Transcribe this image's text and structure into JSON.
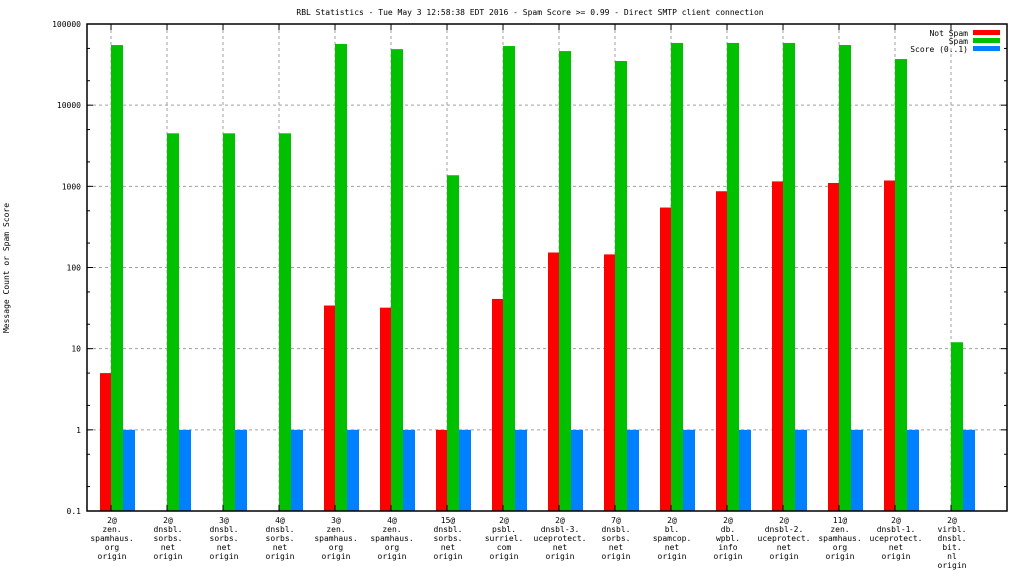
{
  "chart_data": {
    "type": "bar",
    "title": "RBL Statistics - Tue May  3 12:58:38 EDT 2016 - Spam Score >= 0.99 - Direct SMTP client connection",
    "xlabel": "",
    "ylabel": "Message Count or Spam Score",
    "yscale": "log",
    "ylim": [
      0.1,
      100000
    ],
    "yticks": [
      "0.1",
      "1",
      "10",
      "100",
      "1000",
      "10000",
      "100000"
    ],
    "grid": true,
    "legend_position": "top-right",
    "categories": [
      [
        "2@",
        "zen.",
        "spamhaus.",
        "org",
        "origin"
      ],
      [
        "2@",
        "dnsbl.",
        "sorbs.",
        "net",
        "origin"
      ],
      [
        "3@",
        "dnsbl.",
        "sorbs.",
        "net",
        "origin"
      ],
      [
        "4@",
        "dnsbl.",
        "sorbs.",
        "net",
        "origin"
      ],
      [
        "3@",
        "zen.",
        "spamhaus.",
        "org",
        "origin"
      ],
      [
        "4@",
        "zen.",
        "spamhaus.",
        "org",
        "origin"
      ],
      [
        "15@",
        "dnsbl.",
        "sorbs.",
        "net",
        "origin"
      ],
      [
        "2@",
        "psbl.",
        "surriel.",
        "com",
        "origin"
      ],
      [
        "2@",
        "dnsbl-3.",
        "uceprotect.",
        "net",
        "origin"
      ],
      [
        "7@",
        "dnsbl.",
        "sorbs.",
        "net",
        "origin"
      ],
      [
        "2@",
        "bl.",
        "spamcop.",
        "net",
        "origin"
      ],
      [
        "2@",
        "db.",
        "wpbl.",
        "info",
        "origin"
      ],
      [
        "2@",
        "dnsbl-2.",
        "uceprotect.",
        "net",
        "origin"
      ],
      [
        "11@",
        "zen.",
        "spamhaus.",
        "org",
        "origin"
      ],
      [
        "2@",
        "dnsbl-1.",
        "uceprotect.",
        "net",
        "origin"
      ],
      [
        "2@",
        "virbl.",
        "dnsbl.",
        "bit.",
        "nl",
        "origin"
      ]
    ],
    "series": [
      {
        "name": "Not Spam",
        "color": "#ff0000",
        "values": [
          5,
          null,
          null,
          null,
          34,
          32,
          1,
          41,
          153,
          145,
          548,
          870,
          1150,
          1100,
          1180,
          null
        ]
      },
      {
        "name": "Spam",
        "color": "#00c000",
        "values": [
          55000,
          4500,
          4500,
          4500,
          56800,
          49000,
          1370,
          53500,
          46400,
          35000,
          58400,
          58400,
          58400,
          55100,
          37000,
          12
        ]
      },
      {
        "name": "Score (0..1)",
        "color": "#0080ff",
        "values": [
          1,
          1,
          1,
          1,
          1,
          1,
          1,
          1,
          1,
          1,
          1,
          1,
          1,
          1,
          1,
          1
        ]
      }
    ]
  }
}
